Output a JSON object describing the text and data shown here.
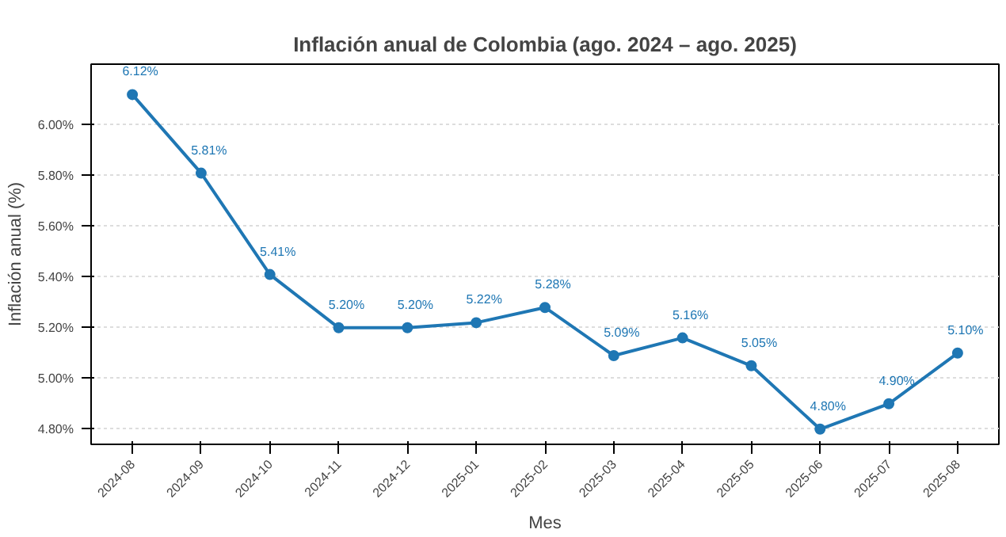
{
  "chart_data": {
    "type": "line",
    "title": "Inflación anual de Colombia (ago. 2024 – ago. 2025)",
    "xlabel": "Mes",
    "ylabel": "Inflación anual (%)",
    "categories": [
      "2024-08",
      "2024-09",
      "2024-10",
      "2024-11",
      "2024-12",
      "2025-01",
      "2025-02",
      "2025-03",
      "2025-04",
      "2025-05",
      "2025-06",
      "2025-07",
      "2025-08"
    ],
    "series": [
      {
        "color": "#1f77b4",
        "values": [
          6.12,
          5.81,
          5.41,
          5.2,
          5.2,
          5.22,
          5.28,
          5.09,
          5.16,
          5.05,
          4.8,
          4.9,
          5.1
        ],
        "value_labels": [
          "6.12%",
          "5.81%",
          "5.41%",
          "5.20%",
          "5.20%",
          "5.22%",
          "5.28%",
          "5.09%",
          "5.16%",
          "5.05%",
          "4.80%",
          "4.90%",
          "5.10%"
        ]
      }
    ],
    "ylim": [
      4.74,
      6.24
    ],
    "yticks": [
      {
        "value": 4.8,
        "label": "4.80%"
      },
      {
        "value": 5.0,
        "label": "5.00%"
      },
      {
        "value": 5.2,
        "label": "5.20%"
      },
      {
        "value": 5.4,
        "label": "5.40%"
      },
      {
        "value": 5.6,
        "label": "5.60%"
      },
      {
        "value": 5.8,
        "label": "5.80%"
      },
      {
        "value": 6.0,
        "label": "6.00%"
      }
    ],
    "grid": "y",
    "marker": "circle",
    "line_style": "solid"
  }
}
